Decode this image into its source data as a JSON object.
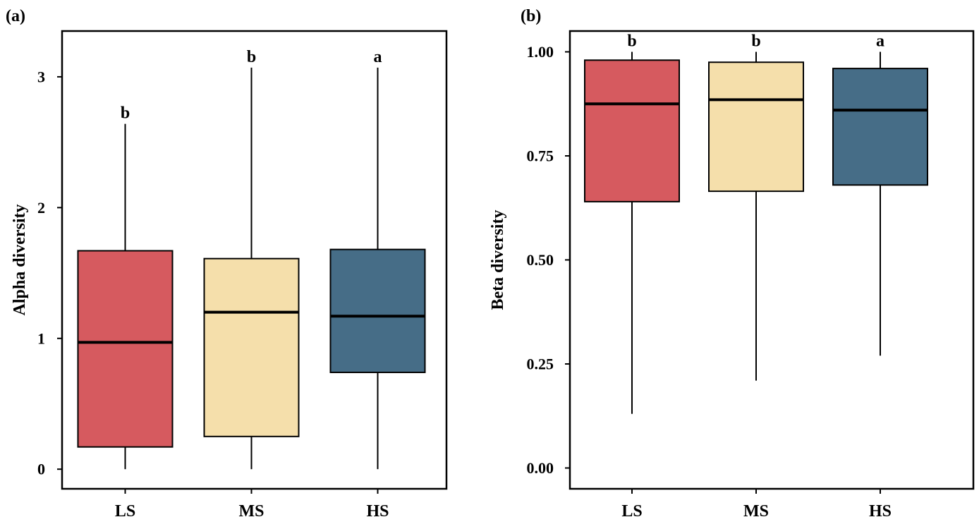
{
  "chart_data": [
    {
      "panel_label": "(a)",
      "type": "box",
      "title": "",
      "xlabel": "",
      "ylabel": "Alpha diversity",
      "ylim": [
        -0.15,
        3.35
      ],
      "yticks": [
        0,
        1,
        2,
        3
      ],
      "ytick_labels": [
        "0",
        "1",
        "2",
        "3"
      ],
      "grid": false,
      "categories": [
        "LS",
        "MS",
        "HS"
      ],
      "boxes": [
        {
          "category": "LS",
          "whisker_low": 0.0,
          "q1": 0.17,
          "median": 0.97,
          "q3": 1.67,
          "whisker_high": 2.64,
          "letter": "b"
        },
        {
          "category": "MS",
          "whisker_low": 0.0,
          "q1": 0.25,
          "median": 1.2,
          "q3": 1.61,
          "whisker_high": 3.07,
          "letter": "b"
        },
        {
          "category": "HS",
          "whisker_low": 0.0,
          "q1": 0.74,
          "median": 1.17,
          "q3": 1.68,
          "whisker_high": 3.07,
          "letter": "a"
        }
      ]
    },
    {
      "panel_label": "(b)",
      "type": "box",
      "title": "",
      "xlabel": "",
      "ylabel": "Beta diversity",
      "ylim": [
        -0.05,
        1.05
      ],
      "yticks": [
        0,
        0.25,
        0.5,
        0.75,
        1.0
      ],
      "ytick_labels": [
        "0.00",
        "0.25",
        "0.50",
        "0.75",
        "1.00"
      ],
      "grid": false,
      "categories": [
        "LS",
        "MS",
        "HS"
      ],
      "boxes": [
        {
          "category": "LS",
          "whisker_low": 0.13,
          "q1": 0.64,
          "median": 0.875,
          "q3": 0.98,
          "whisker_high": 1.0,
          "letter": "b"
        },
        {
          "category": "MS",
          "whisker_low": 0.21,
          "q1": 0.665,
          "median": 0.885,
          "q3": 0.975,
          "whisker_high": 1.0,
          "letter": "b"
        },
        {
          "category": "HS",
          "whisker_low": 0.27,
          "q1": 0.68,
          "median": 0.86,
          "q3": 0.96,
          "whisker_high": 1.0,
          "letter": "a"
        }
      ]
    }
  ],
  "colors": {
    "LS": "#d65a5f",
    "MS": "#f5dfab",
    "HS": "#466d87",
    "line": "#000000"
  }
}
